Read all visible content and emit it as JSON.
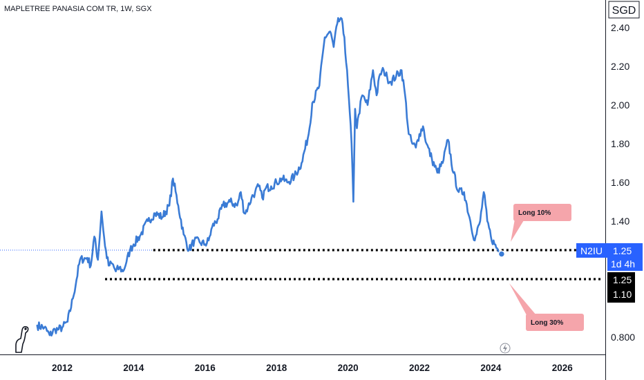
{
  "chart_data": {
    "type": "line",
    "title": "MAPLETREE PANASIA COM TR, 1W, SGX",
    "unit": "SGD",
    "xlabel": "",
    "ylabel": "",
    "xlim": [
      2011.0,
      2027.1
    ],
    "ylim": [
      0.72,
      2.5
    ],
    "grid": false,
    "x_ticks": [
      "2012",
      "2014",
      "2016",
      "2018",
      "2020",
      "2022",
      "2024",
      "2026"
    ],
    "y_ticks": [
      "2.40",
      "2.20",
      "2.00",
      "1.80",
      "1.60",
      "1.40",
      "0.800"
    ],
    "series": [
      {
        "color": "#3a7bd5",
        "x": [
          2011.3,
          2011.5,
          2011.65,
          2011.8,
          2011.9,
          2012.0,
          2012.15,
          2012.3,
          2012.5,
          2012.7,
          2012.8,
          2012.9,
          2013.0,
          2013.1,
          2013.2,
          2013.3,
          2013.4,
          2013.5,
          2013.6,
          2013.7,
          2013.8,
          2013.9,
          2014.0,
          2014.2,
          2014.4,
          2014.6,
          2014.8,
          2015.0,
          2015.1,
          2015.25,
          2015.4,
          2015.55,
          2015.7,
          2015.85,
          2016.0,
          2016.1,
          2016.2,
          2016.35,
          2016.5,
          2016.7,
          2016.9,
          2017.0,
          2017.1,
          2017.2,
          2017.3,
          2017.4,
          2017.5,
          2017.6,
          2017.7,
          2017.85,
          2018.0,
          2018.15,
          2018.3,
          2018.5,
          2018.7,
          2018.9,
          2019.0,
          2019.2,
          2019.35,
          2019.5,
          2019.6,
          2019.7,
          2019.8,
          2019.9,
          2020.0,
          2020.1,
          2020.15,
          2020.2,
          2020.25,
          2020.3,
          2020.4,
          2020.55,
          2020.7,
          2020.8,
          2020.9,
          2021.0,
          2021.1,
          2021.2,
          2021.35,
          2021.5,
          2021.6,
          2021.7,
          2021.8,
          2021.9,
          2022.0,
          2022.1,
          2022.2,
          2022.35,
          2022.5,
          2022.65,
          2022.8,
          2022.95,
          2023.1,
          2023.25,
          2023.4,
          2023.55,
          2023.7,
          2023.8,
          2023.9,
          2024.0,
          2024.1,
          2024.2,
          2024.3
        ],
        "values": [
          0.86,
          0.85,
          0.81,
          0.84,
          0.84,
          0.85,
          0.88,
          1.0,
          1.2,
          1.21,
          1.17,
          1.32,
          1.2,
          1.45,
          1.27,
          1.17,
          1.18,
          1.14,
          1.16,
          1.14,
          1.19,
          1.25,
          1.28,
          1.33,
          1.4,
          1.44,
          1.42,
          1.48,
          1.62,
          1.48,
          1.33,
          1.25,
          1.3,
          1.29,
          1.28,
          1.3,
          1.37,
          1.41,
          1.48,
          1.5,
          1.48,
          1.55,
          1.44,
          1.47,
          1.52,
          1.55,
          1.58,
          1.52,
          1.57,
          1.58,
          1.6,
          1.62,
          1.6,
          1.63,
          1.7,
          1.85,
          2.01,
          2.1,
          2.35,
          2.38,
          2.3,
          2.42,
          2.45,
          2.35,
          2.1,
          1.8,
          1.5,
          1.98,
          1.88,
          1.95,
          2.05,
          2.0,
          2.18,
          2.05,
          2.16,
          2.18,
          2.14,
          2.12,
          2.15,
          2.18,
          2.05,
          1.85,
          1.8,
          1.78,
          1.85,
          1.89,
          1.8,
          1.72,
          1.65,
          1.7,
          1.82,
          1.65,
          1.55,
          1.55,
          1.42,
          1.3,
          1.4,
          1.55,
          1.4,
          1.32,
          1.28,
          1.25,
          1.23
        ]
      }
    ],
    "levels": [
      {
        "value": 1.25,
        "x_start": 2014.55,
        "x_end": 2027.1
      },
      {
        "value": 1.1,
        "x_start": 2013.2,
        "x_end": 2027.1
      }
    ],
    "annotations": [
      {
        "text": "Long 10%",
        "color": "#f5a5ab"
      },
      {
        "text": "Long 30%",
        "color": "#f5a5ab"
      }
    ],
    "price_tags": [
      {
        "symbol": "N2IU",
        "price": "1.25",
        "time": "1d 4h",
        "color": "#2962ff"
      },
      {
        "price": "1.25",
        "color": "#000000"
      },
      {
        "price": "1.10",
        "color": "#000000"
      }
    ]
  }
}
